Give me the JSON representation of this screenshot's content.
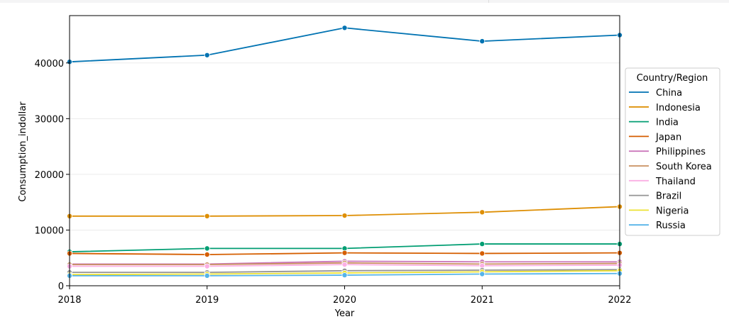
{
  "chart_data": {
    "type": "line",
    "title": "",
    "xlabel": "Year",
    "ylabel": "Consumption_indollar",
    "x": [
      2018,
      2019,
      2020,
      2021,
      2022
    ],
    "x_ticks": [
      "2018",
      "2019",
      "2020",
      "2021",
      "2022"
    ],
    "xlim": [
      2018,
      2022
    ],
    "ylim": [
      0,
      48500
    ],
    "y_ticks": [
      0,
      10000,
      20000,
      30000,
      40000
    ],
    "y_tick_labels": [
      "0",
      "10000",
      "20000",
      "30000",
      "40000"
    ],
    "grid": "horizontal",
    "legend": {
      "title": "Country/Region",
      "placement": "right"
    },
    "series": [
      {
        "name": "China",
        "color": "#0173b2",
        "values": [
          40200,
          41400,
          46300,
          43900,
          45000
        ]
      },
      {
        "name": "Indonesia",
        "color": "#de8f05",
        "values": [
          12500,
          12500,
          12600,
          13200,
          14200
        ]
      },
      {
        "name": "India",
        "color": "#029e73",
        "values": [
          6100,
          6700,
          6700,
          7500,
          7500
        ]
      },
      {
        "name": "Japan",
        "color": "#d55e00",
        "values": [
          5800,
          5600,
          5900,
          5800,
          5900
        ]
      },
      {
        "name": "Philippines",
        "color": "#cc78bc",
        "values": [
          3900,
          3900,
          4400,
          4300,
          4300
        ]
      },
      {
        "name": "South Korea",
        "color": "#ca9161",
        "values": [
          3800,
          3800,
          4100,
          3900,
          4000
        ]
      },
      {
        "name": "Thailand",
        "color": "#fbafe4",
        "values": [
          3500,
          3500,
          3800,
          3600,
          3700
        ]
      },
      {
        "name": "Brazil",
        "color": "#949494",
        "values": [
          2400,
          2400,
          2700,
          2800,
          2900
        ]
      },
      {
        "name": "Nigeria",
        "color": "#ece133",
        "values": [
          2000,
          2100,
          2300,
          2500,
          2700
        ]
      },
      {
        "name": "Russia",
        "color": "#56b4e9",
        "values": [
          1800,
          1800,
          1900,
          2100,
          2200
        ]
      }
    ]
  }
}
